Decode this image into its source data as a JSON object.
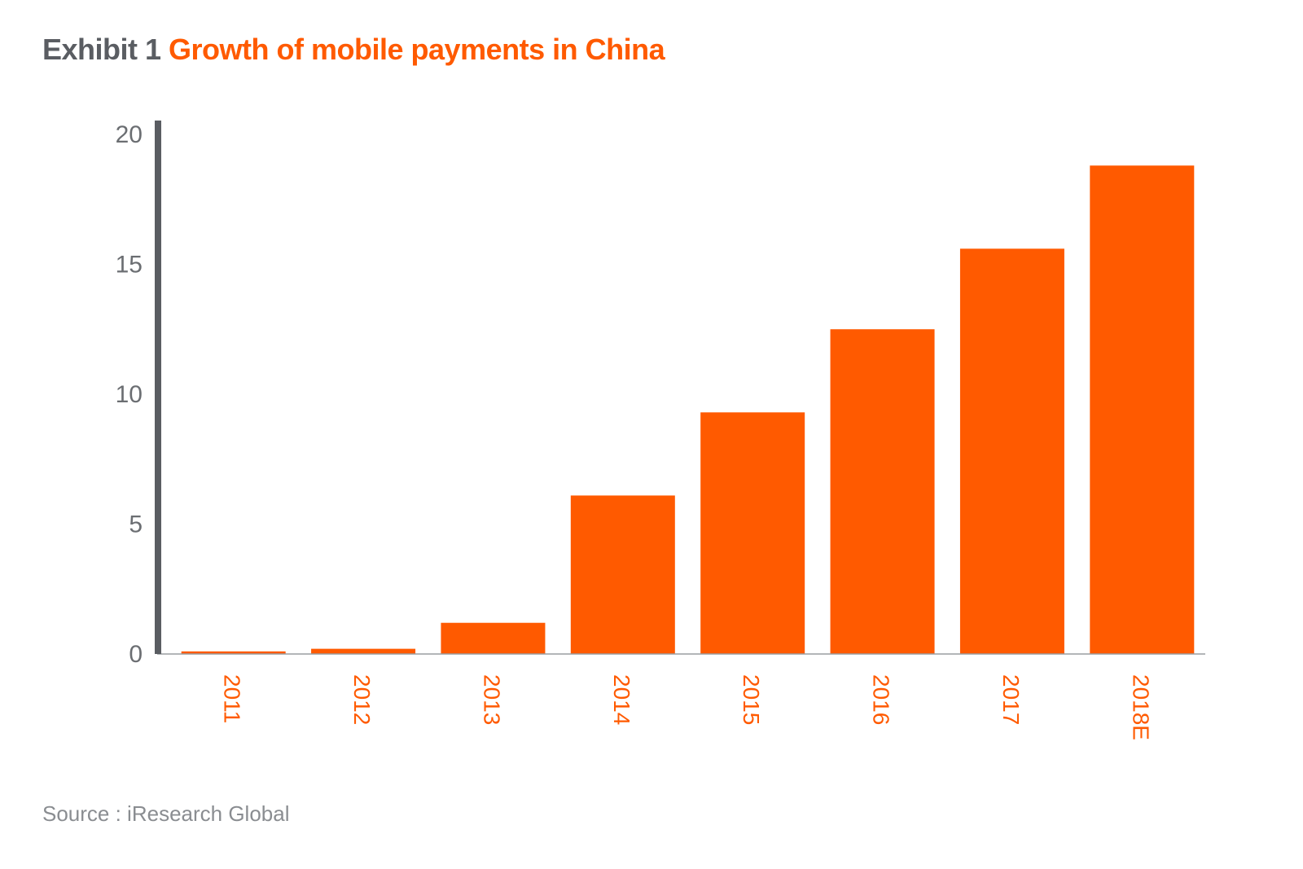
{
  "title": {
    "prefix": "Exhibit 1",
    "main": "Growth of mobile payments in China"
  },
  "source": "Source : iResearch Global",
  "colors": {
    "bar": "#ff5a00",
    "axis": "#5a5d62",
    "tick_text": "#6b6e72",
    "category_text": "#ff5a00"
  },
  "chart_data": {
    "type": "bar",
    "categories": [
      "2011",
      "2012",
      "2013",
      "2014",
      "2015",
      "2016",
      "2017",
      "2018E"
    ],
    "values": [
      0.1,
      0.2,
      1.2,
      6.1,
      9.3,
      12.5,
      15.6,
      18.8
    ],
    "title": "Growth of mobile payments in China",
    "xlabel": "",
    "ylabel": "",
    "ylim": [
      0,
      20
    ],
    "yticks": [
      "0",
      "5",
      "10",
      "15",
      "20"
    ],
    "grid": false,
    "legend": "none"
  }
}
